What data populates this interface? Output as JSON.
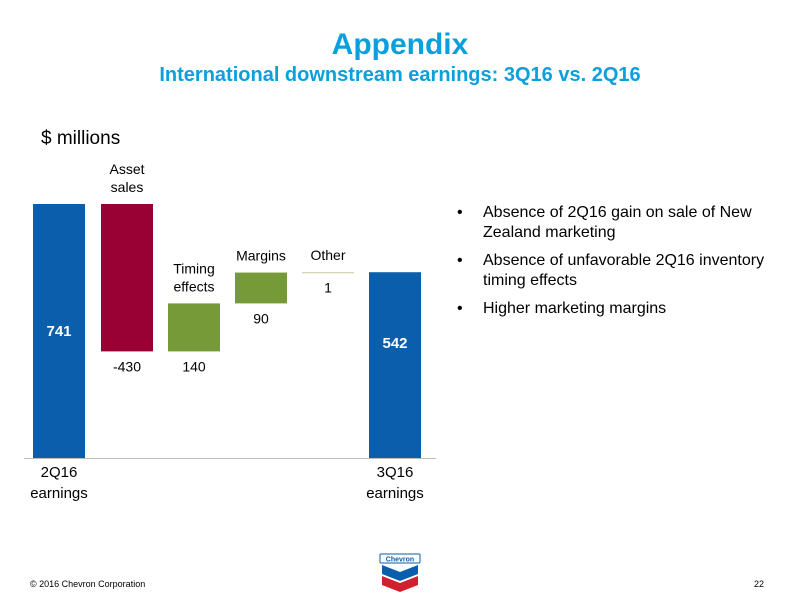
{
  "slide": {
    "title": "Appendix",
    "subtitle": "International downstream earnings: 3Q16 vs. 2Q16",
    "unit_label": "$ millions",
    "bullets": [
      "Absence of 2Q16 gain on sale of New Zealand marketing",
      "Absence of unfavorable 2Q16 inventory timing effects",
      "Higher marketing margins"
    ],
    "bullet_glyph": "•",
    "footer": "© 2016 Chevron Corporation",
    "page_number": "22",
    "logo_text": "Chevron"
  },
  "chart_data": {
    "type": "bar",
    "subtype": "waterfall",
    "categories": [
      "2Q16 earnings",
      "Asset sales",
      "Timing effects",
      "Margins",
      "Other",
      "3Q16 earnings"
    ],
    "category_labels": [
      [
        "2Q16",
        "earnings"
      ],
      [
        "Asset",
        "sales"
      ],
      [
        "Timing",
        "effects"
      ],
      [
        "Margins"
      ],
      [
        "Other"
      ],
      [
        "3Q16",
        "earnings"
      ]
    ],
    "values": [
      741,
      -430,
      140,
      90,
      1,
      542
    ],
    "data_labels": [
      "741",
      "-430",
      "140",
      "90",
      "1",
      "542"
    ],
    "kinds": [
      "total",
      "delta",
      "delta",
      "delta",
      "delta",
      "total"
    ],
    "colors": {
      "total": "#0a5eab",
      "negative": "#990033",
      "positive": "#769a37",
      "other": "#c8c8a0",
      "total_label": "#ffffff",
      "accent": "#0b9fdc"
    },
    "ylim": [
      0,
      741
    ],
    "grid": false,
    "legend": "none"
  }
}
